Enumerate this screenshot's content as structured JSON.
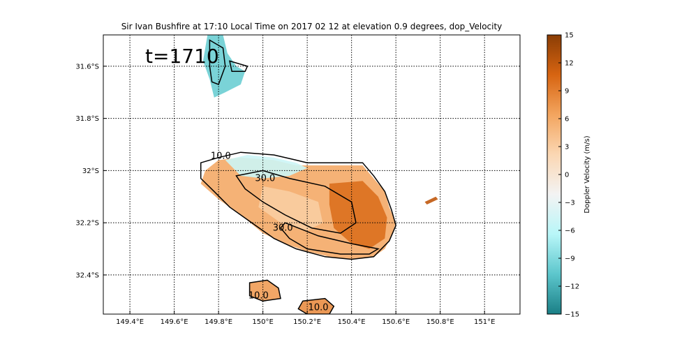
{
  "chart_data": {
    "type": "heatmap",
    "title": "Sir Ivan Bushfire at 17:10 Local Time on 2017 02 12 at elevation 0.9 degrees, dop_Velocity",
    "annotation": "t=1710",
    "x_ticks": [
      149.4,
      149.6,
      149.8,
      150.0,
      150.2,
      150.4,
      150.6,
      150.8,
      151.0
    ],
    "x_tick_labels": [
      "149.4°E",
      "149.6°E",
      "149.8°E",
      "150°E",
      "150.2°E",
      "150.4°E",
      "150.6°E",
      "150.8°E",
      "151°E"
    ],
    "y_ticks": [
      -31.6,
      -31.8,
      -32.0,
      -32.2,
      -32.4
    ],
    "y_tick_labels": [
      "31.6°S",
      "31.8°S",
      "32°S",
      "32.2°S",
      "32.4°S"
    ],
    "xlim": [
      149.28,
      151.16
    ],
    "ylim": [
      -32.55,
      -31.48
    ],
    "grid": true,
    "colorbar": {
      "label": "Doppler Velocity (m/s)",
      "min": -15,
      "max": 15,
      "ticks": [
        -15,
        -12,
        -9,
        -6,
        -3,
        0,
        3,
        6,
        9,
        12,
        15
      ],
      "colors": [
        "#1a7f86",
        "#5cc6cc",
        "#b8f6f8",
        "#f3f3f3",
        "#fbd7b3",
        "#f3a55f",
        "#d76411",
        "#8a3d05"
      ]
    },
    "contour_labels": [
      {
        "text": "10.0",
        "x": 149.81,
        "y": -31.955
      },
      {
        "text": "30.0",
        "x": 150.01,
        "y": -32.04
      },
      {
        "text": "30.0",
        "x": 150.09,
        "y": -32.23
      },
      {
        "text": "10.0",
        "x": 149.98,
        "y": -32.49
      },
      {
        "text": "10.0",
        "x": 150.25,
        "y": -32.535
      }
    ],
    "regions": [
      {
        "name": "main-echo",
        "mean_velocity": 6,
        "polygon": [
          [
            149.74,
            -32.0
          ],
          [
            149.8,
            -31.96
          ],
          [
            149.9,
            -31.95
          ],
          [
            150.05,
            -31.96
          ],
          [
            150.15,
            -31.98
          ],
          [
            150.3,
            -31.98
          ],
          [
            150.45,
            -31.98
          ],
          [
            150.5,
            -32.03
          ],
          [
            150.55,
            -32.08
          ],
          [
            150.57,
            -32.14
          ],
          [
            150.6,
            -32.2
          ],
          [
            150.58,
            -32.25
          ],
          [
            150.55,
            -32.3
          ],
          [
            150.5,
            -32.33
          ],
          [
            150.4,
            -32.34
          ],
          [
            150.3,
            -32.33
          ],
          [
            150.2,
            -32.31
          ],
          [
            150.1,
            -32.28
          ],
          [
            150.0,
            -32.24
          ],
          [
            149.9,
            -32.17
          ],
          [
            149.8,
            -32.11
          ],
          [
            149.72,
            -32.05
          ]
        ]
      },
      {
        "name": "inner-echo",
        "mean_velocity": 10,
        "polygon": [
          [
            150.3,
            -32.05
          ],
          [
            150.45,
            -32.04
          ],
          [
            150.52,
            -32.1
          ],
          [
            150.56,
            -32.18
          ],
          [
            150.55,
            -32.26
          ],
          [
            150.48,
            -32.3
          ],
          [
            150.4,
            -32.28
          ],
          [
            150.32,
            -32.22
          ],
          [
            150.3,
            -32.13
          ]
        ]
      },
      {
        "name": "light-core",
        "mean_velocity": 3,
        "polygon": [
          [
            150.0,
            -32.06
          ],
          [
            150.12,
            -32.08
          ],
          [
            150.25,
            -32.12
          ],
          [
            150.27,
            -32.2
          ],
          [
            150.2,
            -32.23
          ],
          [
            150.08,
            -32.2
          ],
          [
            149.98,
            -32.14
          ]
        ]
      },
      {
        "name": "inbound-cap",
        "mean_velocity": -5,
        "polygon": [
          [
            149.83,
            -31.96
          ],
          [
            149.93,
            -31.94
          ],
          [
            150.05,
            -31.95
          ],
          [
            150.15,
            -31.97
          ],
          [
            150.2,
            -31.99
          ],
          [
            150.12,
            -32.02
          ],
          [
            150.0,
            -32.03
          ],
          [
            149.9,
            -32.02
          ]
        ]
      },
      {
        "name": "small-south-1",
        "mean_velocity": 7,
        "polygon": [
          [
            149.94,
            -32.43
          ],
          [
            150.02,
            -32.42
          ],
          [
            150.07,
            -32.45
          ],
          [
            150.08,
            -32.49
          ],
          [
            150.0,
            -32.5
          ],
          [
            149.94,
            -32.48
          ]
        ]
      },
      {
        "name": "small-south-2",
        "mean_velocity": 8,
        "polygon": [
          [
            150.18,
            -32.5
          ],
          [
            150.28,
            -32.49
          ],
          [
            150.32,
            -32.52
          ],
          [
            150.3,
            -32.55
          ],
          [
            150.2,
            -32.55
          ],
          [
            150.16,
            -32.53
          ]
        ]
      },
      {
        "name": "north-inbound",
        "mean_velocity": -10,
        "polygon": [
          [
            149.75,
            -31.48
          ],
          [
            149.82,
            -31.48
          ],
          [
            149.84,
            -31.55
          ],
          [
            149.88,
            -31.6
          ],
          [
            149.92,
            -31.62
          ],
          [
            149.9,
            -31.67
          ],
          [
            149.83,
            -31.7
          ],
          [
            149.78,
            -31.72
          ],
          [
            149.76,
            -31.65
          ],
          [
            149.73,
            -31.58
          ]
        ]
      },
      {
        "name": "east-speck",
        "mean_velocity": 12,
        "polygon": [
          [
            150.73,
            -32.12
          ],
          [
            150.78,
            -32.1
          ],
          [
            150.79,
            -32.11
          ],
          [
            150.74,
            -32.13
          ]
        ]
      }
    ],
    "contours": [
      {
        "level": 10,
        "polygon": [
          [
            149.72,
            -31.97
          ],
          [
            149.8,
            -31.95
          ],
          [
            149.9,
            -31.93
          ],
          [
            150.05,
            -31.94
          ],
          [
            150.15,
            -31.96
          ],
          [
            150.2,
            -31.97
          ],
          [
            150.3,
            -31.97
          ],
          [
            150.45,
            -31.97
          ],
          [
            150.5,
            -32.02
          ],
          [
            150.55,
            -32.08
          ],
          [
            150.58,
            -32.15
          ],
          [
            150.6,
            -32.21
          ],
          [
            150.57,
            -32.27
          ],
          [
            150.5,
            -32.33
          ],
          [
            150.4,
            -32.34
          ],
          [
            150.28,
            -32.33
          ],
          [
            150.15,
            -32.3
          ],
          [
            150.05,
            -32.26
          ],
          [
            149.95,
            -32.2
          ],
          [
            149.85,
            -32.14
          ],
          [
            149.78,
            -32.08
          ],
          [
            149.72,
            -32.03
          ]
        ]
      },
      {
        "level": 30,
        "polygon": [
          [
            149.88,
            -32.02
          ],
          [
            150.0,
            -32.0
          ],
          [
            150.12,
            -32.03
          ],
          [
            150.28,
            -32.06
          ],
          [
            150.4,
            -32.12
          ],
          [
            150.42,
            -32.2
          ],
          [
            150.35,
            -32.24
          ],
          [
            150.22,
            -32.22
          ],
          [
            150.1,
            -32.17
          ],
          [
            150.0,
            -32.12
          ],
          [
            149.92,
            -32.07
          ]
        ]
      },
      {
        "level": 30,
        "polygon": [
          [
            150.1,
            -32.2
          ],
          [
            150.25,
            -32.25
          ],
          [
            150.4,
            -32.28
          ],
          [
            150.52,
            -32.3
          ],
          [
            150.48,
            -32.32
          ],
          [
            150.35,
            -32.32
          ],
          [
            150.2,
            -32.3
          ],
          [
            150.12,
            -32.26
          ],
          [
            150.08,
            -32.22
          ]
        ]
      },
      {
        "level": 10,
        "polygon": [
          [
            149.94,
            -32.43
          ],
          [
            150.02,
            -32.42
          ],
          [
            150.07,
            -32.45
          ],
          [
            150.08,
            -32.49
          ],
          [
            150.0,
            -32.5
          ],
          [
            149.94,
            -32.48
          ]
        ]
      },
      {
        "level": 10,
        "polygon": [
          [
            150.18,
            -32.5
          ],
          [
            150.28,
            -32.49
          ],
          [
            150.32,
            -32.52
          ],
          [
            150.3,
            -32.55
          ],
          [
            150.2,
            -32.55
          ],
          [
            150.16,
            -32.53
          ]
        ]
      },
      {
        "level": 10,
        "polygon": [
          [
            149.76,
            -31.5
          ],
          [
            149.82,
            -31.53
          ],
          [
            149.83,
            -31.6
          ],
          [
            149.8,
            -31.67
          ],
          [
            149.77,
            -31.66
          ],
          [
            149.76,
            -31.6
          ]
        ]
      },
      {
        "level": 10,
        "polygon": [
          [
            149.85,
            -31.58
          ],
          [
            149.93,
            -31.6
          ],
          [
            149.92,
            -31.62
          ],
          [
            149.86,
            -31.62
          ]
        ]
      }
    ]
  }
}
